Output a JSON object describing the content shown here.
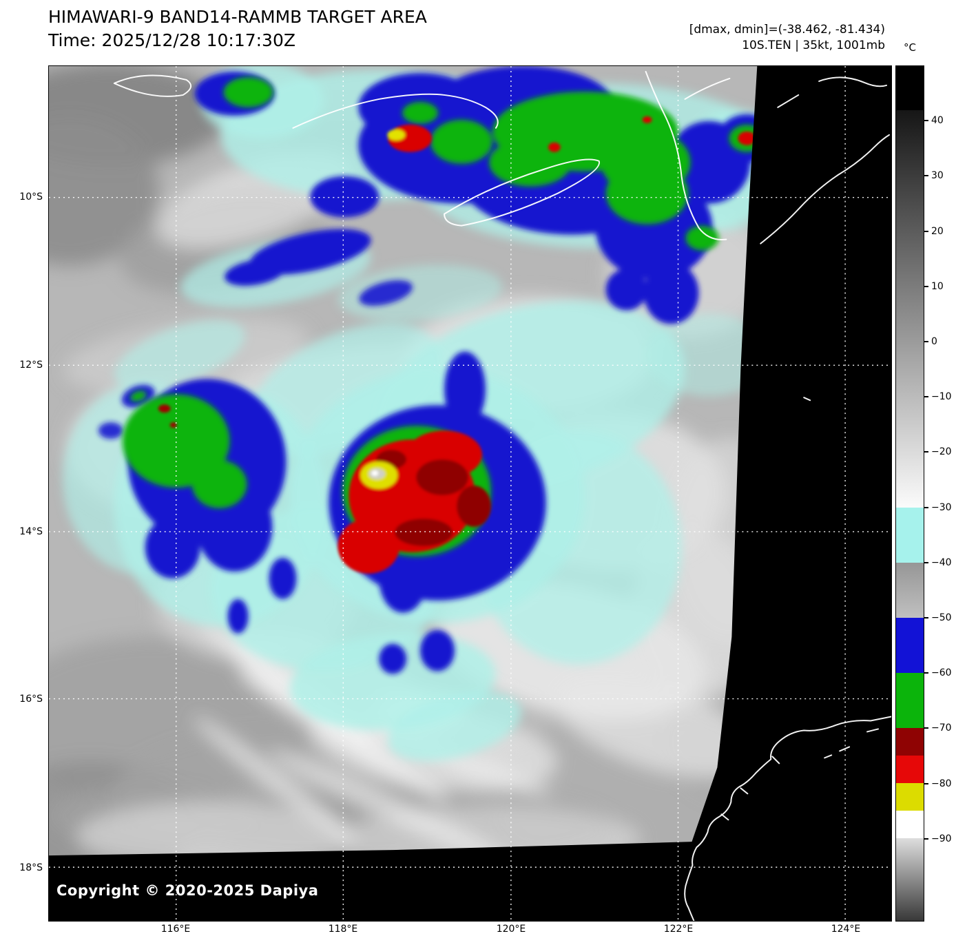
{
  "header": {
    "title": "HIMAWARI-9 BAND14-RAMMB TARGET AREA",
    "time": "Time: 2025/12/28 10:17:30Z",
    "dmax_dmin": "[dmax, dmin]=(-38.462, -81.434)",
    "storm_info": "10S.TEN | 35kt, 1001mb"
  },
  "colorbar": {
    "unit_label": "°C",
    "domain": [
      50,
      -105
    ],
    "ticks": [
      {
        "value": 40,
        "label": "40"
      },
      {
        "value": 30,
        "label": "30"
      },
      {
        "value": 20,
        "label": "20"
      },
      {
        "value": 10,
        "label": "10"
      },
      {
        "value": 0,
        "label": "0"
      },
      {
        "value": -10,
        "label": "−10"
      },
      {
        "value": -20,
        "label": "−20"
      },
      {
        "value": -30,
        "label": "−30"
      },
      {
        "value": -40,
        "label": "−40"
      },
      {
        "value": -50,
        "label": "−50"
      },
      {
        "value": -60,
        "label": "−60"
      },
      {
        "value": -70,
        "label": "−70"
      },
      {
        "value": -80,
        "label": "−80"
      },
      {
        "value": -90,
        "label": "−90"
      }
    ],
    "segments": [
      {
        "from": 50,
        "to": 42,
        "color": "#000000"
      },
      {
        "from": 42,
        "to": -30,
        "color": "#161616",
        "color2": "#fbfbfb"
      },
      {
        "from": -30,
        "to": -40,
        "color": "#a6f2ec"
      },
      {
        "from": -40,
        "to": -50,
        "color": "#969696",
        "color2": "#c0c0c0"
      },
      {
        "from": -50,
        "to": -60,
        "color": "#1212d6"
      },
      {
        "from": -60,
        "to": -70,
        "color": "#0bb40b"
      },
      {
        "from": -70,
        "to": -75,
        "color": "#8f0303"
      },
      {
        "from": -75,
        "to": -80,
        "color": "#e60808"
      },
      {
        "from": -80,
        "to": -85,
        "color": "#dcdc00"
      },
      {
        "from": -85,
        "to": -90,
        "color": "#ffffff"
      },
      {
        "from": -90,
        "to": -105,
        "color": "#dedede",
        "color2": "#383838"
      }
    ]
  },
  "map": {
    "lat_labels": [
      "10°S",
      "12°S",
      "14°S",
      "16°S",
      "18°S"
    ],
    "lon_labels": [
      "116°E",
      "118°E",
      "120°E",
      "122°E",
      "124°E"
    ],
    "copyright": "Copyright © 2020-2025 Dapiya"
  }
}
